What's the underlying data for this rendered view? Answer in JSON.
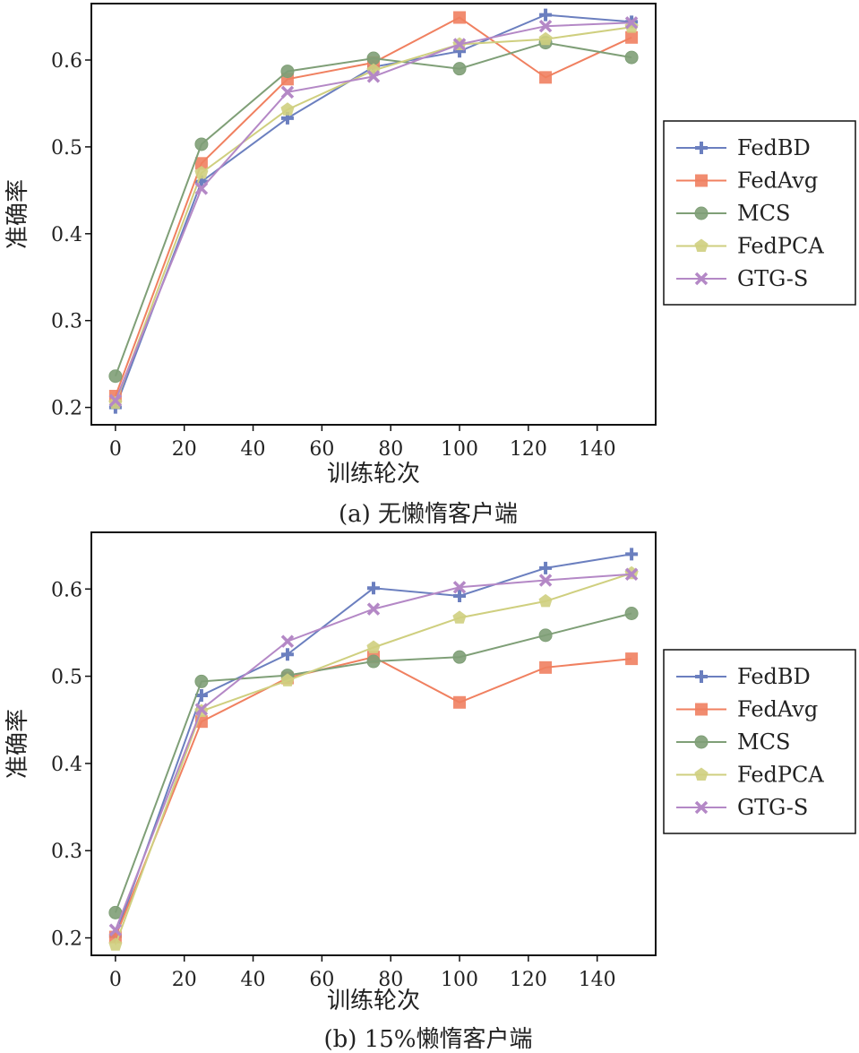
{
  "chart_data": [
    {
      "type": "line",
      "caption": "(a) 无懒惰客户端",
      "xlabel": "训练轮次",
      "ylabel": "准确率",
      "x": [
        0,
        25,
        50,
        75,
        100,
        125,
        150
      ],
      "xlim": [
        -7,
        157
      ],
      "ylim": [
        0.18,
        0.665
      ],
      "xticks": [
        0,
        20,
        40,
        60,
        80,
        100,
        120,
        140
      ],
      "yticks": [
        0.2,
        0.3,
        0.4,
        0.5,
        0.6
      ],
      "ytick_labels": [
        "0.2",
        "0.3",
        "0.4",
        "0.5",
        "0.6"
      ],
      "legend_position": "right",
      "series": [
        {
          "name": "FedBD",
          "color": "#6b7fbf",
          "marker": "plus",
          "values": [
            0.2,
            0.46,
            0.533,
            0.592,
            0.61,
            0.652,
            0.644
          ]
        },
        {
          "name": "FedAvg",
          "color": "#f08060",
          "marker": "square",
          "values": [
            0.213,
            0.481,
            0.578,
            0.597,
            0.649,
            0.58,
            0.626
          ]
        },
        {
          "name": "MCS",
          "color": "#7f9f77",
          "marker": "circle",
          "values": [
            0.236,
            0.503,
            0.587,
            0.602,
            0.59,
            0.62,
            0.603
          ]
        },
        {
          "name": "FedPCA",
          "color": "#cfcf7f",
          "marker": "pentagon",
          "values": [
            0.205,
            0.47,
            0.543,
            0.588,
            0.618,
            0.624,
            0.638
          ]
        },
        {
          "name": "GTG-S",
          "color": "#b488c6",
          "marker": "x",
          "values": [
            0.208,
            0.452,
            0.563,
            0.581,
            0.618,
            0.639,
            0.643
          ]
        }
      ]
    },
    {
      "type": "line",
      "caption": "(b) 15%懒惰客户端",
      "xlabel": "训练轮次",
      "ylabel": "准确率",
      "x": [
        0,
        25,
        50,
        75,
        100,
        125,
        150
      ],
      "xlim": [
        -7,
        157
      ],
      "ylim": [
        0.18,
        0.665
      ],
      "xticks": [
        0,
        20,
        40,
        60,
        80,
        100,
        120,
        140
      ],
      "yticks": [
        0.2,
        0.3,
        0.4,
        0.5,
        0.6
      ],
      "ytick_labels": [
        "0.2",
        "0.3",
        "0.4",
        "0.5",
        "0.6"
      ],
      "legend_position": "right",
      "series": [
        {
          "name": "FedBD",
          "color": "#6b7fbf",
          "marker": "plus",
          "values": [
            0.202,
            0.478,
            0.525,
            0.601,
            0.592,
            0.624,
            0.64
          ]
        },
        {
          "name": "FedAvg",
          "color": "#f08060",
          "marker": "square",
          "values": [
            0.201,
            0.448,
            0.498,
            0.522,
            0.47,
            0.51,
            0.52
          ]
        },
        {
          "name": "MCS",
          "color": "#7f9f77",
          "marker": "circle",
          "values": [
            0.229,
            0.494,
            0.501,
            0.517,
            0.522,
            0.547,
            0.572
          ]
        },
        {
          "name": "FedPCA",
          "color": "#cfcf7f",
          "marker": "pentagon",
          "values": [
            0.192,
            0.46,
            0.495,
            0.533,
            0.567,
            0.586,
            0.618
          ]
        },
        {
          "name": "GTG-S",
          "color": "#b488c6",
          "marker": "x",
          "values": [
            0.209,
            0.462,
            0.54,
            0.577,
            0.602,
            0.61,
            0.617
          ]
        }
      ]
    }
  ]
}
